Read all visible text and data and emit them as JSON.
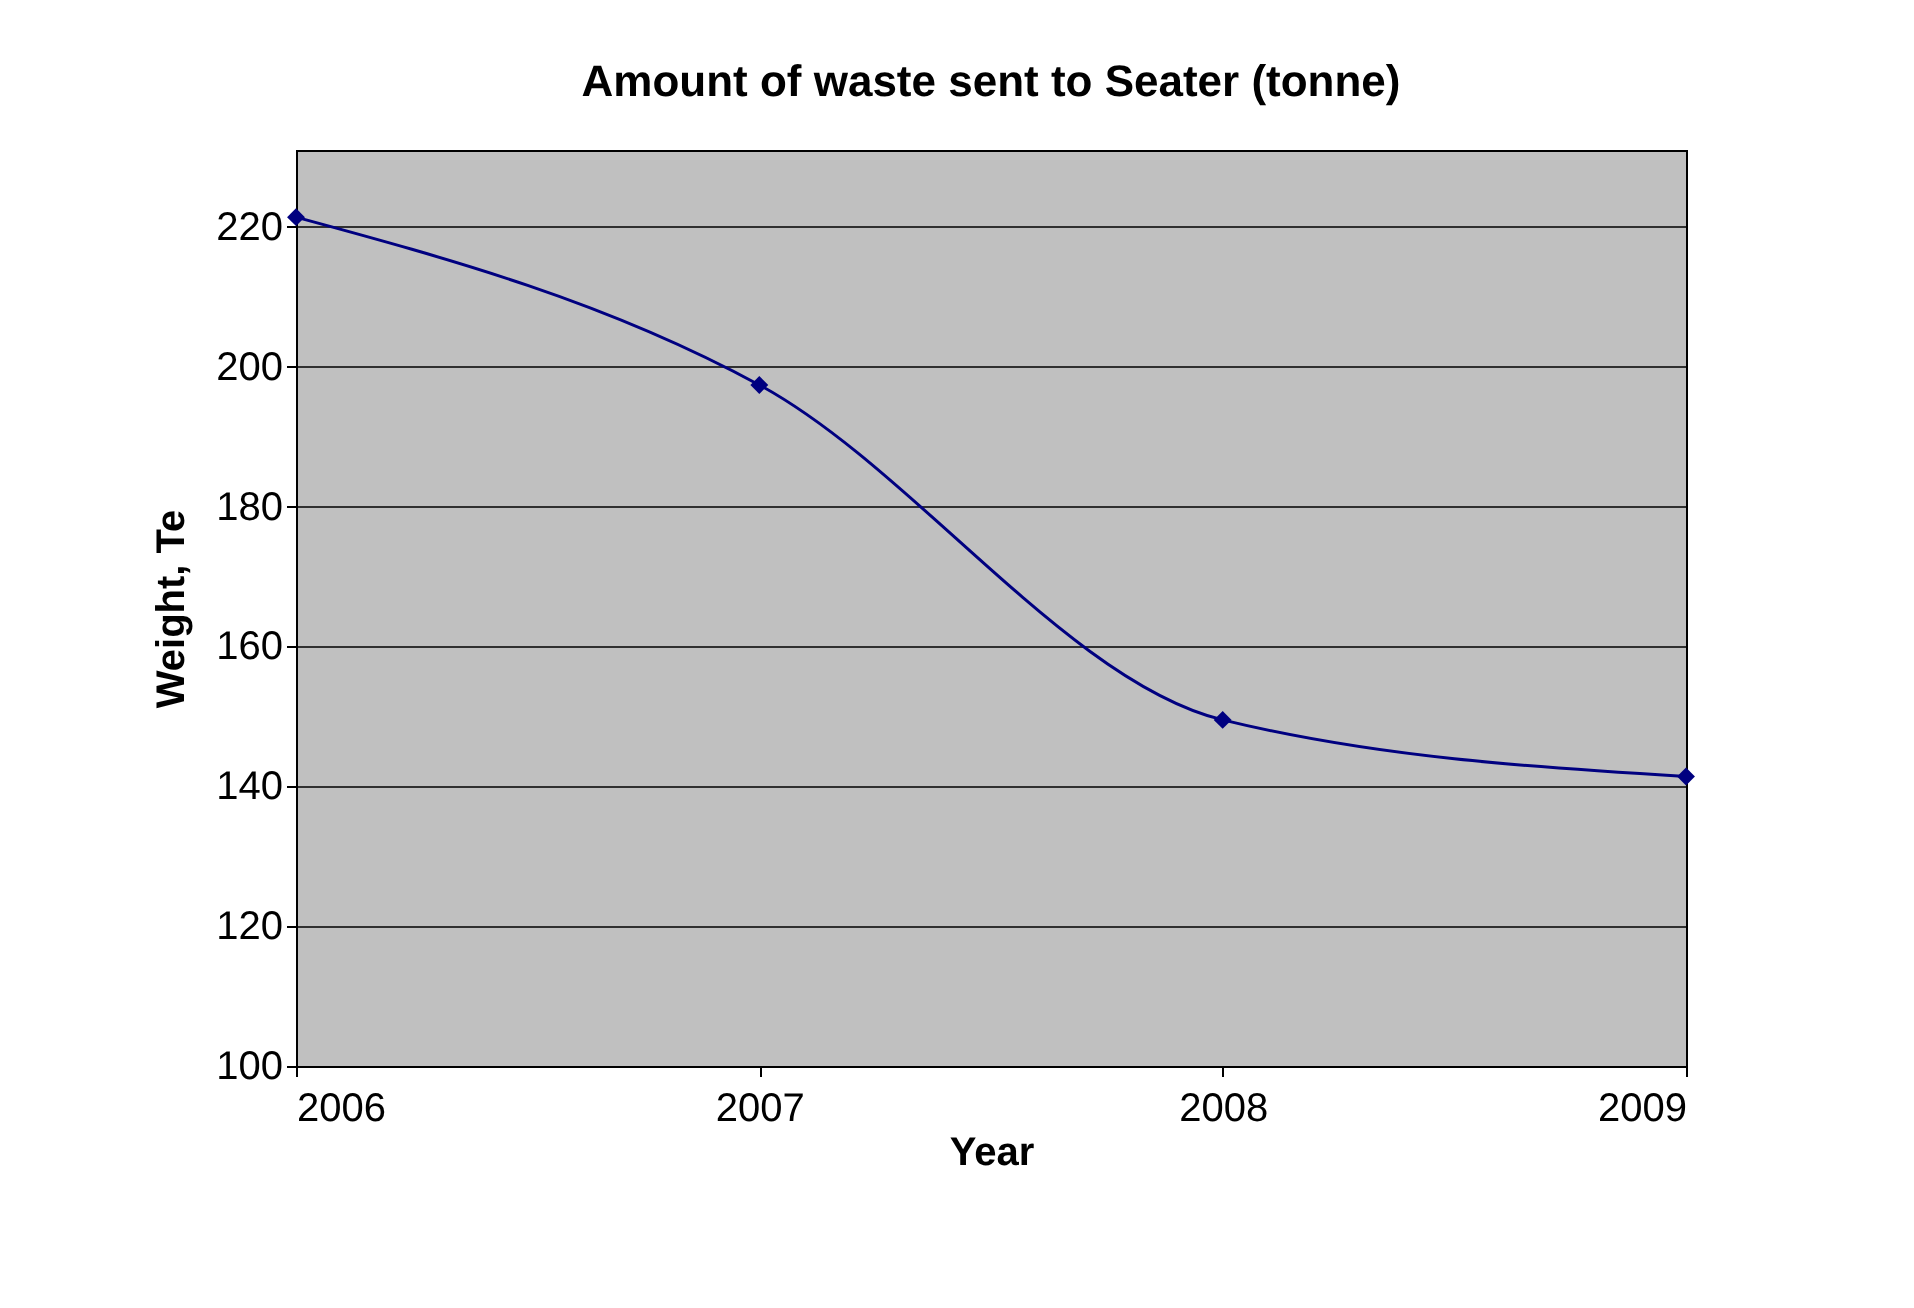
{
  "chart_data": {
    "type": "line",
    "title": "Amount of waste sent to Seater (tonne)",
    "xlabel": "Year",
    "ylabel": "Weight, Te",
    "x": [
      2006,
      2007,
      2008,
      2009
    ],
    "series": [
      {
        "color": "#000080",
        "values": [
          221.4,
          197.4,
          149.5,
          141.4
        ]
      }
    ],
    "xlim": [
      2006,
      2009
    ],
    "xticks": [
      2006,
      2007,
      2008,
      2009
    ],
    "ylim": [
      100,
      231
    ],
    "yticks": [
      100,
      120,
      140,
      160,
      180,
      200,
      220
    ],
    "grid": "y",
    "marker": "diamond",
    "line_style": "solid"
  }
}
